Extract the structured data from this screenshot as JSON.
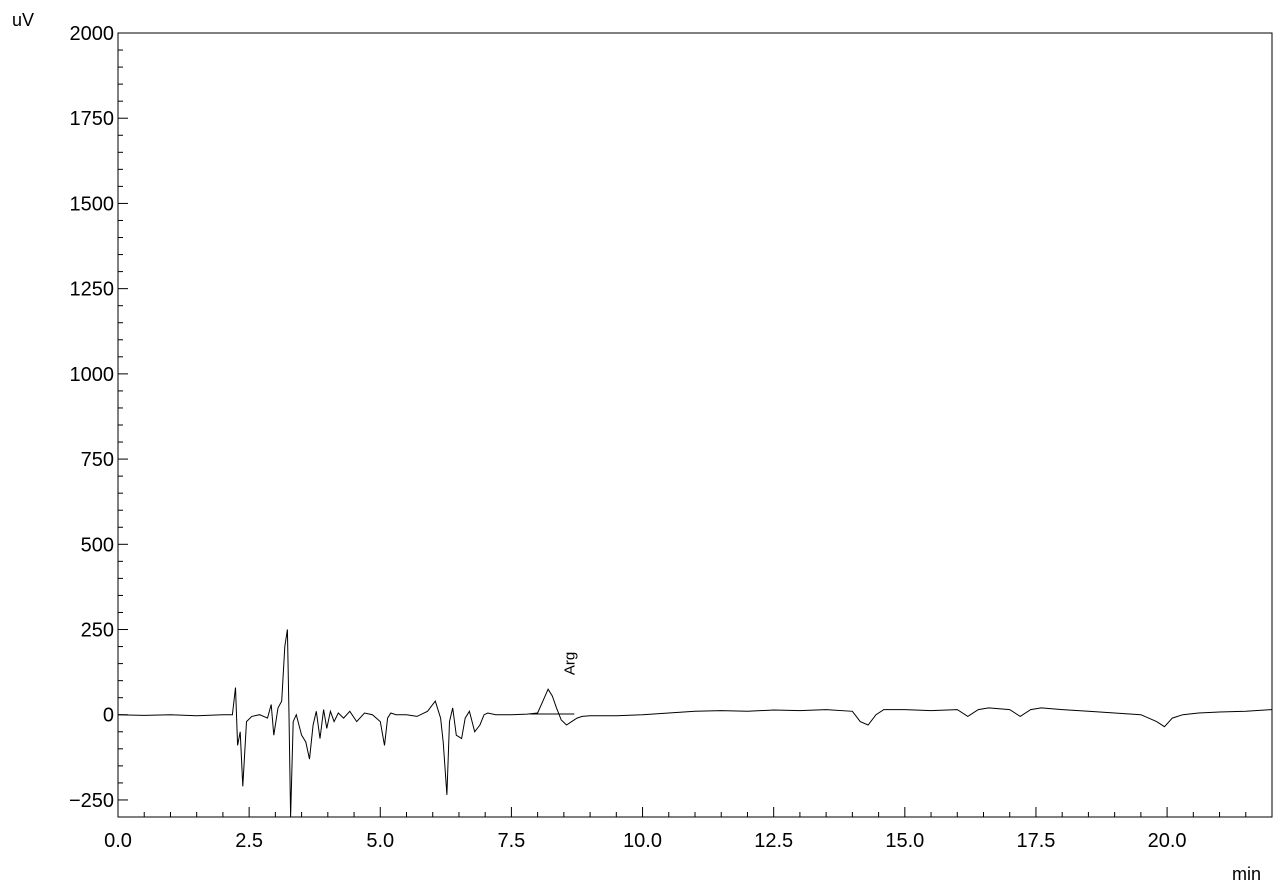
{
  "chart_data": {
    "type": "line",
    "title": "",
    "ylabel": "uV",
    "xlabel": "min",
    "xlim": [
      0,
      22
    ],
    "ylim": [
      -300,
      2000
    ],
    "x_ticks": [
      {
        "value": 0,
        "label": "0.0"
      },
      {
        "value": 2.5,
        "label": "2.5"
      },
      {
        "value": 5,
        "label": "5.0"
      },
      {
        "value": 7.5,
        "label": "7.5"
      },
      {
        "value": 10,
        "label": "10.0"
      },
      {
        "value": 12.5,
        "label": "12.5"
      },
      {
        "value": 15,
        "label": "15.0"
      },
      {
        "value": 17.5,
        "label": "17.5"
      },
      {
        "value": 20,
        "label": "20.0"
      }
    ],
    "y_ticks": [
      {
        "value": -250,
        "label": "−250"
      },
      {
        "value": 0,
        "label": "0"
      },
      {
        "value": 250,
        "label": "250"
      },
      {
        "value": 500,
        "label": "500"
      },
      {
        "value": 750,
        "label": "750"
      },
      {
        "value": 1000,
        "label": "1000"
      },
      {
        "value": 1250,
        "label": "1250"
      },
      {
        "value": 1500,
        "label": "1500"
      },
      {
        "value": 1750,
        "label": "1750"
      },
      {
        "value": 2000,
        "label": "2000"
      }
    ],
    "grid": false,
    "series": [
      {
        "color": "#000000",
        "x": [
          0,
          0.5,
          1.0,
          1.5,
          2.0,
          2.18,
          2.24,
          2.28,
          2.33,
          2.38,
          2.45,
          2.55,
          2.7,
          2.85,
          2.92,
          2.97,
          3.05,
          3.12,
          3.18,
          3.23,
          3.26,
          3.29,
          3.34,
          3.4,
          3.5,
          3.58,
          3.65,
          3.72,
          3.78,
          3.85,
          3.92,
          3.98,
          4.05,
          4.12,
          4.2,
          4.3,
          4.42,
          4.55,
          4.7,
          4.85,
          5.0,
          5.08,
          5.14,
          5.2,
          5.3,
          5.5,
          5.7,
          5.9,
          6.05,
          6.15,
          6.2,
          6.27,
          6.32,
          6.38,
          6.45,
          6.55,
          6.62,
          6.7,
          6.8,
          6.9,
          6.98,
          7.05,
          7.2,
          7.5,
          7.8,
          8.0,
          8.1,
          8.2,
          8.28,
          8.36,
          8.45,
          8.55,
          8.65,
          8.75,
          8.85,
          9.0,
          9.5,
          10.0,
          10.5,
          11.0,
          11.5,
          12.0,
          12.5,
          13.0,
          13.5,
          14.0,
          14.15,
          14.3,
          14.45,
          14.6,
          15.0,
          15.5,
          16.0,
          16.2,
          16.4,
          16.6,
          17.0,
          17.2,
          17.4,
          17.6,
          18.0,
          18.5,
          19.0,
          19.5,
          19.8,
          19.95,
          20.1,
          20.3,
          20.6,
          21.0,
          21.5,
          22.0
        ],
        "y": [
          0,
          -2,
          0,
          -3,
          0,
          0,
          80,
          -90,
          -50,
          -210,
          -20,
          -5,
          0,
          -10,
          30,
          -60,
          20,
          40,
          200,
          250,
          0,
          -300,
          -20,
          0,
          -60,
          -80,
          -130,
          -30,
          10,
          -70,
          15,
          -40,
          10,
          -20,
          5,
          -10,
          10,
          -20,
          5,
          0,
          -20,
          -90,
          -10,
          5,
          0,
          0,
          -5,
          10,
          40,
          -10,
          -80,
          -235,
          -20,
          20,
          -60,
          -70,
          -10,
          10,
          -50,
          -30,
          0,
          5,
          0,
          0,
          2,
          5,
          40,
          75,
          55,
          20,
          -15,
          -30,
          -20,
          -10,
          -5,
          -3,
          -3,
          0,
          5,
          10,
          12,
          10,
          14,
          12,
          15,
          10,
          -20,
          -30,
          0,
          15,
          15,
          12,
          15,
          -5,
          15,
          20,
          15,
          -5,
          15,
          20,
          15,
          10,
          5,
          0,
          -20,
          -35,
          -10,
          0,
          5,
          8,
          10,
          15
        ]
      }
    ],
    "annotations": [
      {
        "label": "Arg",
        "x": 8.28,
        "y": 75
      }
    ]
  }
}
